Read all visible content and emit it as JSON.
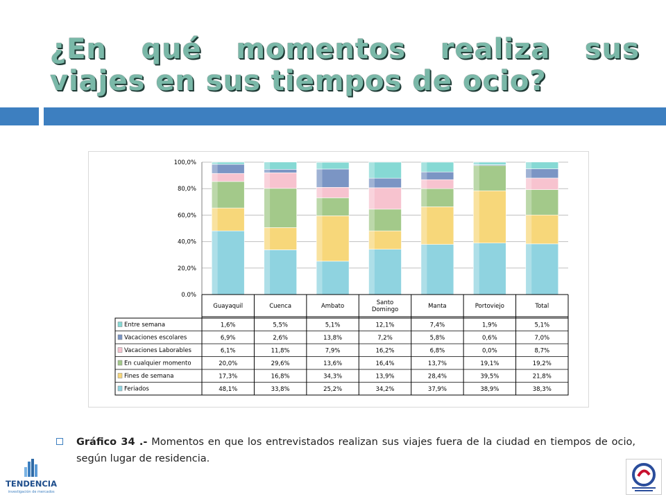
{
  "slide": {
    "title": "¿En qué momentos realiza sus viajes en sus tiempos de ocio?",
    "caption_bold": "Gráfico 34 .-",
    "caption_text": " Momentos en que los entrevistados realizan sus viajes fuera de la ciudad en tiempos de ocio, según lugar de residencia.",
    "logo_left_text": "TENDENCIA",
    "logo_left_subtext": "investigación de mercados",
    "accent_color": "#3d7fc0",
    "title_color": "#7ab8a8"
  },
  "chart_data": {
    "type": "bar",
    "stacked": true,
    "percent_stacked": true,
    "categories": [
      "Guayaquil",
      "Cuenca",
      "Ambato",
      "Santo Domingo",
      "Manta",
      "Portoviejo",
      "Total"
    ],
    "category_lines": [
      [
        "Guayaquil"
      ],
      [
        "Cuenca"
      ],
      [
        "Ambato"
      ],
      [
        "Santo",
        "Domingo"
      ],
      [
        "Manta"
      ],
      [
        "Portoviejo"
      ],
      [
        "Total"
      ]
    ],
    "y_ticks": [
      "0.0%",
      "20,0%",
      "40,0%",
      "60,0%",
      "80,0%",
      "100,0%"
    ],
    "ylim": [
      0,
      100
    ],
    "grid": true,
    "legend_placement": "data-table",
    "series": [
      {
        "name": "Feriados",
        "color": "#8fd3e0",
        "values": [
          48.1,
          33.8,
          25.2,
          34.2,
          37.9,
          38.9,
          38.3
        ],
        "labels": [
          "48,1%",
          "33,8%",
          "25,2%",
          "34,2%",
          "37,9%",
          "38,9%",
          "38,3%"
        ]
      },
      {
        "name": "Fines de semana",
        "color": "#f7d77a",
        "values": [
          17.3,
          16.8,
          34.3,
          13.9,
          28.4,
          39.5,
          21.8
        ],
        "labels": [
          "17,3%",
          "16,8%",
          "34,3%",
          "13,9%",
          "28,4%",
          "39,5%",
          "21,8%"
        ]
      },
      {
        "name": "En cualquier momento",
        "color": "#a3c98a",
        "values": [
          20.0,
          29.6,
          13.6,
          16.4,
          13.7,
          19.1,
          19.2
        ],
        "labels": [
          "20,0%",
          "29,6%",
          "13,6%",
          "16,4%",
          "13,7%",
          "19,1%",
          "19,2%"
        ]
      },
      {
        "name": "Vacaciones Laborables",
        "color": "#f7c3cf",
        "values": [
          6.1,
          11.8,
          7.9,
          16.2,
          6.8,
          0.0,
          8.7
        ],
        "labels": [
          "6,1%",
          "11,8%",
          "7,9%",
          "16,2%",
          "6,8%",
          "0,0%",
          "8,7%"
        ]
      },
      {
        "name": "Vacaciones escolares",
        "color": "#7b95c4",
        "values": [
          6.9,
          2.6,
          13.8,
          7.2,
          5.8,
          0.6,
          7.0
        ],
        "labels": [
          "6,9%",
          "2,6%",
          "13,8%",
          "7,2%",
          "5,8%",
          "0,6%",
          "7,0%"
        ]
      },
      {
        "name": "Entre semana",
        "color": "#86d9d4",
        "values": [
          1.6,
          5.5,
          5.1,
          12.1,
          7.4,
          1.9,
          5.1
        ],
        "labels": [
          "1,6%",
          "5,5%",
          "5,1%",
          "12,1%",
          "7,4%",
          "1,9%",
          "5,1%"
        ]
      }
    ],
    "table_row_order": [
      "Entre semana",
      "Vacaciones escolares",
      "Vacaciones Laborables",
      "En cualquier momento",
      "Fines de semana",
      "Feriados"
    ]
  }
}
